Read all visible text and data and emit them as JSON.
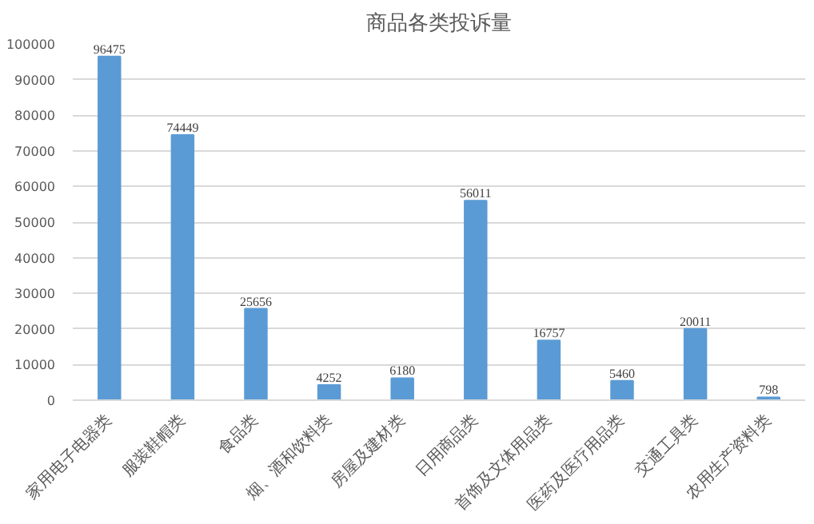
{
  "chart_data": {
    "type": "bar",
    "title": "商品各类投诉量",
    "categories": [
      "家用电子电器类",
      "服装鞋帽类",
      "食品类",
      "烟、酒和饮料类",
      "房屋及建材类",
      "日用商品类",
      "首饰及文体用品类",
      "医药及医疗用品类",
      "交通工具类",
      "农用生产资料类"
    ],
    "values": [
      96475,
      74449,
      25656,
      4252,
      6180,
      56011,
      16757,
      5460,
      20011,
      798
    ],
    "color": "#5b9bd5",
    "ylim": [
      0,
      100000
    ],
    "yticks": [
      0,
      10000,
      20000,
      30000,
      40000,
      50000,
      60000,
      70000,
      80000,
      90000,
      100000
    ],
    "grid": "y",
    "data_labels": true
  }
}
